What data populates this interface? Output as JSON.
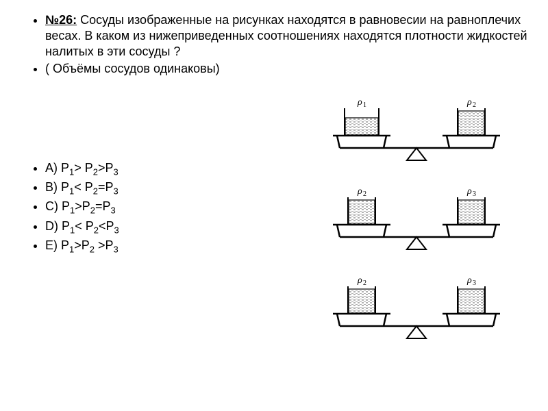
{
  "problem": {
    "title_prefix": "№26:",
    "text": " Сосуды изображенные на рисунках находятся в равновесии на равноплечих весах. В каком из нижеприведенных соотношениях находятся плотности жидкостей налитых в эти сосуды ?",
    "note": " ( Объёмы сосудов одинаковы)"
  },
  "answers": {
    "a_label": "A)  ",
    "a_expr_p1": "Р",
    "a_sub1": "1",
    "a_op1": "> Р",
    "a_sub2": "2",
    "a_op2": ">Р",
    "a_sub3": "3",
    "b_label": "B)  ",
    "b_p1": "Р",
    "b_s1": "1",
    "b_o1": "< Р",
    "b_s2": "2",
    "b_o2": "=Р",
    "b_s3": "3",
    "c_label": "C)  ",
    "c_p1": "Р",
    "c_s1": "1",
    "c_o1": ">Р",
    "c_s2": "2",
    "c_o2": "=Р",
    "c_s3": "3",
    "d_label": "D)  ",
    "d_p1": "Р",
    "d_s1": "1",
    "d_o1": "< Р",
    "d_s2": "2",
    "d_o2": "<Р",
    "d_s3": "3",
    "e_label": "E)  ",
    "e_p1": "Р",
    "e_s1": "1",
    "e_o1": ">Р",
    "e_s2": "2",
    "e_o2": " >Р",
    "e_s3": "3"
  },
  "diagram": {
    "colors": {
      "stroke": "#000000",
      "bg": "#ffffff"
    },
    "stroke_width": 2,
    "vessel": {
      "width_wide": 50,
      "width_narrow": 40,
      "height": 40,
      "fill_height": 34
    },
    "scales": [
      {
        "left_label": "ρ",
        "left_sub": "1",
        "right_label": "ρ",
        "right_sub": "2",
        "left_wide": true,
        "right_wide": false,
        "left_fill": 26,
        "right_fill": 36
      },
      {
        "left_label": "ρ",
        "left_sub": "2",
        "right_label": "ρ",
        "right_sub": "3",
        "left_wide": false,
        "right_wide": false,
        "left_fill": 36,
        "right_fill": 36
      },
      {
        "left_label": "ρ",
        "left_sub": "2",
        "right_label": "ρ",
        "right_sub": "3",
        "left_wide": false,
        "right_wide": false,
        "left_fill": 36,
        "right_fill": 36
      }
    ]
  }
}
